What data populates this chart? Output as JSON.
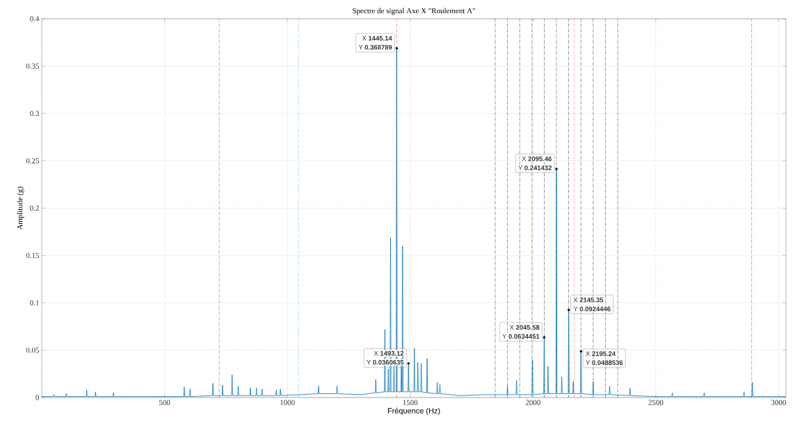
{
  "chart_data": {
    "type": "line",
    "title": "Spectre de signal Axe X \"Roulement A\"",
    "xlabel": "Fréquence (Hz)",
    "ylabel": "Amplitude (g)",
    "xlim": [
      0,
      3030
    ],
    "ylim": [
      0,
      0.4
    ],
    "xticks": [
      500,
      1000,
      1500,
      2000,
      2500,
      3000
    ],
    "yticks": [
      0,
      0.05,
      0.1,
      0.15,
      0.2,
      0.25,
      0.3,
      0.35,
      0.4
    ],
    "grid": true,
    "series": [
      {
        "color": "#0072bd",
        "x": [
          0,
          48,
          50,
          52,
          98,
          100,
          102,
          181,
          183,
          185,
          217,
          219,
          221,
          290,
          292,
          294,
          578,
          580,
          582,
          602,
          604,
          606,
          695,
          697,
          699,
          734,
          736,
          738,
          773,
          775,
          777,
          798,
          800,
          802,
          847,
          849,
          851,
          872,
          874,
          876,
          895,
          897,
          899,
          953,
          955,
          957,
          970,
          972,
          974,
          1125,
          1127,
          1129,
          1200,
          1202,
          1204,
          1300,
          1358,
          1360,
          1362,
          1395,
          1397,
          1399,
          1409,
          1411,
          1413,
          1418,
          1420,
          1422,
          1432,
          1434,
          1436,
          1443,
          1445.14,
          1447,
          1462,
          1464,
          1466,
          1467,
          1469,
          1471,
          1491,
          1493.12,
          1495,
          1515,
          1517,
          1519,
          1529,
          1531,
          1533,
          1543,
          1545,
          1547,
          1567,
          1569,
          1571,
          1608,
          1610,
          1612,
          1619,
          1621,
          1623,
          1700,
          1800,
          1894,
          1896,
          1898,
          1931,
          1933,
          1935,
          1996,
          1998,
          2000,
          2043.5,
          2045.58,
          2047.5,
          2059,
          2061,
          2063,
          2093.5,
          2095.46,
          2097.5,
          2115,
          2117,
          2119,
          2143.5,
          2145.35,
          2147.5,
          2162,
          2164,
          2166,
          2193.5,
          2195.24,
          2197.5,
          2243,
          2245,
          2247,
          2310,
          2312,
          2314,
          2393,
          2395,
          2397,
          2500,
          2565,
          2567,
          2569,
          2695,
          2697,
          2699,
          2857,
          2859,
          2861,
          2891,
          2893,
          2895,
          3030
        ],
        "values": [
          0.001,
          0.001,
          0.003,
          0.001,
          0.001,
          0.004,
          0.001,
          0.001,
          0.008,
          0.001,
          0.001,
          0.006,
          0.001,
          0.001,
          0.005,
          0.001,
          0.001,
          0.011,
          0.001,
          0.001,
          0.009,
          0.001,
          0.002,
          0.015,
          0.002,
          0.002,
          0.013,
          0.002,
          0.002,
          0.024,
          0.002,
          0.002,
          0.012,
          0.002,
          0.002,
          0.01,
          0.002,
          0.002,
          0.01,
          0.002,
          0.002,
          0.009,
          0.002,
          0.002,
          0.008,
          0.002,
          0.002,
          0.009,
          0.002,
          0.004,
          0.012,
          0.004,
          0.004,
          0.012,
          0.004,
          0.003,
          0.005,
          0.019,
          0.005,
          0.006,
          0.072,
          0.006,
          0.006,
          0.03,
          0.006,
          0.006,
          0.169,
          0.006,
          0.006,
          0.034,
          0.006,
          0.006,
          0.368789,
          0.006,
          0.006,
          0.036,
          0.006,
          0.006,
          0.16,
          0.006,
          0.006,
          0.0360635,
          0.006,
          0.006,
          0.052,
          0.006,
          0.006,
          0.037,
          0.006,
          0.006,
          0.036,
          0.006,
          0.005,
          0.041,
          0.005,
          0.004,
          0.016,
          0.004,
          0.004,
          0.014,
          0.004,
          0.002,
          0.003,
          0.003,
          0.012,
          0.003,
          0.003,
          0.018,
          0.003,
          0.003,
          0.04,
          0.003,
          0.004,
          0.0634451,
          0.004,
          0.004,
          0.033,
          0.004,
          0.004,
          0.241432,
          0.004,
          0.004,
          0.022,
          0.004,
          0.004,
          0.0924446,
          0.004,
          0.004,
          0.017,
          0.004,
          0.004,
          0.0488536,
          0.004,
          0.003,
          0.017,
          0.003,
          0.003,
          0.012,
          0.003,
          0.002,
          0.01,
          0.002,
          0.001,
          0.001,
          0.005,
          0.001,
          0.001,
          0.005,
          0.001,
          0.001,
          0.006,
          0.001,
          0.001,
          0.016,
          0.001,
          0.001
        ]
      }
    ],
    "ref_lines": [
      {
        "axis": "x",
        "value": 722.5,
        "color": "#ff4040",
        "line_style": "dashdot"
      },
      {
        "axis": "x",
        "value": 1445,
        "color": "#ff4040",
        "line_style": "dashdot"
      },
      {
        "axis": "x",
        "value": 2167.5,
        "color": "#ff8080",
        "line_style": "dashdot"
      },
      {
        "axis": "x",
        "value": 2890,
        "color": "#ff4040",
        "line_style": "dashdot"
      },
      {
        "axis": "x",
        "value": 1046,
        "color": "#70e070",
        "line_style": "dashdot"
      },
      {
        "axis": "x",
        "value": 2095,
        "color": "#207020",
        "line_style": "dashdot"
      },
      {
        "axis": "x",
        "value": 1846,
        "color": "#404040",
        "line_style": "dashdot"
      },
      {
        "axis": "x",
        "value": 1896,
        "color": "#404040",
        "line_style": "dashdot"
      },
      {
        "axis": "x",
        "value": 1946,
        "color": "#404040",
        "line_style": "dashdot"
      },
      {
        "axis": "x",
        "value": 1996,
        "color": "#404040",
        "line_style": "dashdot"
      },
      {
        "axis": "x",
        "value": 2046,
        "color": "#404040",
        "line_style": "dashdot"
      },
      {
        "axis": "x",
        "value": 2145,
        "color": "#404040",
        "line_style": "dashdot"
      },
      {
        "axis": "x",
        "value": 2195,
        "color": "#404040",
        "line_style": "dashdot"
      },
      {
        "axis": "x",
        "value": 2245,
        "color": "#404040",
        "line_style": "dashdot"
      },
      {
        "axis": "x",
        "value": 2295,
        "color": "#404040",
        "line_style": "dashdot"
      },
      {
        "axis": "x",
        "value": 2345,
        "color": "#404040",
        "line_style": "dashdot"
      }
    ],
    "annotations": [
      {
        "text": "X **1445.14**",
        "x": 1445.14,
        "y": 0.368789
      },
      {
        "text": "Y **0.368789**",
        "x": 1445.14,
        "y": 0.368789
      },
      {
        "text": "X **1493.12**",
        "x": 1493.12,
        "y": 0.0360635
      },
      {
        "text": "Y **0.0360635**",
        "x": 1493.12,
        "y": 0.0360635
      },
      {
        "text": "X **2045.58**",
        "x": 2045.58,
        "y": 0.0634451
      },
      {
        "text": "Y **0.0634451**",
        "x": 2045.58,
        "y": 0.0634451
      },
      {
        "text": "X **2095.46**",
        "x": 2095.46,
        "y": 0.241432
      },
      {
        "text": "Y **0.241432**",
        "x": 2095.46,
        "y": 0.241432
      },
      {
        "text": "X **2145.35**",
        "x": 2145.35,
        "y": 0.0924446
      },
      {
        "text": "Y **0.0924446**",
        "x": 2145.35,
        "y": 0.0924446
      },
      {
        "text": "X **2195.24**",
        "x": 2195.24,
        "y": 0.0488536
      },
      {
        "text": "Y **0.0488536**",
        "x": 2195.24,
        "y": 0.0488536
      }
    ]
  }
}
